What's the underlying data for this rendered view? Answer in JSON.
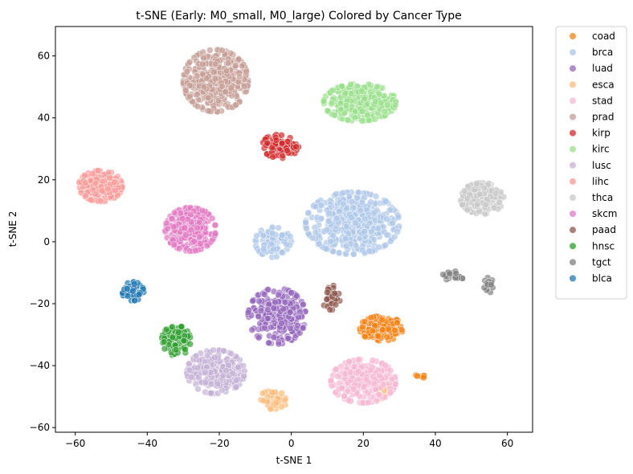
{
  "chart_data": {
    "type": "scatter",
    "title": "t-SNE (Early: M0_small, M0_large) Colored by Cancer Type",
    "xlabel": "t-SNE 1",
    "ylabel": "t-SNE 2",
    "xlim": [
      -65.5,
      67
    ],
    "ylim": [
      -61.5,
      69.5
    ],
    "xticks": [
      -60,
      -40,
      -20,
      0,
      20,
      40,
      60
    ],
    "yticks": [
      -60,
      -40,
      -20,
      0,
      20,
      40,
      60
    ],
    "grid": false,
    "legend_position": "outside-right",
    "series": [
      {
        "name": "coad",
        "color": "#ff7f0e",
        "clusters": [
          {
            "cx": 25,
            "cy": -28,
            "rx": 6,
            "ry": 4,
            "n": 120
          },
          {
            "cx": 36,
            "cy": -43.5,
            "rx": 1.5,
            "ry": 1,
            "n": 6
          }
        ]
      },
      {
        "name": "brca",
        "color": "#aec7e8",
        "clusters": [
          {
            "cx": 17,
            "cy": 6,
            "rx": 13,
            "ry": 10,
            "n": 520
          },
          {
            "cx": -5,
            "cy": 0,
            "rx": 5,
            "ry": 5,
            "n": 90
          }
        ]
      },
      {
        "name": "luad",
        "color": "#9467bd",
        "clusters": [
          {
            "cx": -4,
            "cy": -24,
            "rx": 8,
            "ry": 9,
            "n": 260
          }
        ]
      },
      {
        "name": "esca",
        "color": "#ffbb78",
        "clusters": [
          {
            "cx": -5,
            "cy": -51,
            "rx": 4,
            "ry": 3,
            "n": 40
          },
          {
            "cx": 26,
            "cy": -47,
            "rx": 2,
            "ry": 4,
            "n": 20
          }
        ]
      },
      {
        "name": "stad",
        "color": "#f7b6d2",
        "clusters": [
          {
            "cx": 20,
            "cy": -45,
            "rx": 9,
            "ry": 7,
            "n": 260
          }
        ]
      },
      {
        "name": "prad",
        "color": "#c49c94",
        "clusters": [
          {
            "cx": -21,
            "cy": 52,
            "rx": 9,
            "ry": 10,
            "n": 420
          }
        ]
      },
      {
        "name": "kirp",
        "color": "#d62728",
        "clusters": [
          {
            "cx": -3,
            "cy": 31,
            "rx": 5,
            "ry": 4,
            "n": 110
          }
        ]
      },
      {
        "name": "kirc",
        "color": "#98df8a",
        "clusters": [
          {
            "cx": 19,
            "cy": 45,
            "rx": 10,
            "ry": 6,
            "n": 320
          }
        ]
      },
      {
        "name": "lusc",
        "color": "#c5b0d5",
        "clusters": [
          {
            "cx": -21,
            "cy": -42,
            "rx": 8,
            "ry": 7,
            "n": 280
          }
        ]
      },
      {
        "name": "lihc",
        "color": "#ff9896",
        "clusters": [
          {
            "cx": -53,
            "cy": 18,
            "rx": 6,
            "ry": 5,
            "n": 230
          }
        ]
      },
      {
        "name": "thca",
        "color": "#c7c7c7",
        "clusters": [
          {
            "cx": 53,
            "cy": 14,
            "rx": 6,
            "ry": 5,
            "n": 170
          }
        ]
      },
      {
        "name": "skcm",
        "color": "#e377c2",
        "clusters": [
          {
            "cx": -28,
            "cy": 4,
            "rx": 7,
            "ry": 7,
            "n": 300
          }
        ]
      },
      {
        "name": "paad",
        "color": "#8c564b",
        "clusters": [
          {
            "cx": 11,
            "cy": -18,
            "rx": 2.5,
            "ry": 4,
            "n": 40
          }
        ]
      },
      {
        "name": "hnsc",
        "color": "#2ca02c",
        "clusters": [
          {
            "cx": -32,
            "cy": -32,
            "rx": 4,
            "ry": 5,
            "n": 110
          }
        ]
      },
      {
        "name": "tgct",
        "color": "#7f7f7f",
        "clusters": [
          {
            "cx": 45,
            "cy": -11,
            "rx": 3,
            "ry": 1.5,
            "n": 30
          },
          {
            "cx": 55,
            "cy": -14,
            "rx": 1.5,
            "ry": 2.5,
            "n": 20
          }
        ]
      },
      {
        "name": "blca",
        "color": "#1f77b4",
        "clusters": [
          {
            "cx": -44,
            "cy": -16,
            "rx": 3,
            "ry": 3,
            "n": 90
          }
        ]
      }
    ]
  }
}
